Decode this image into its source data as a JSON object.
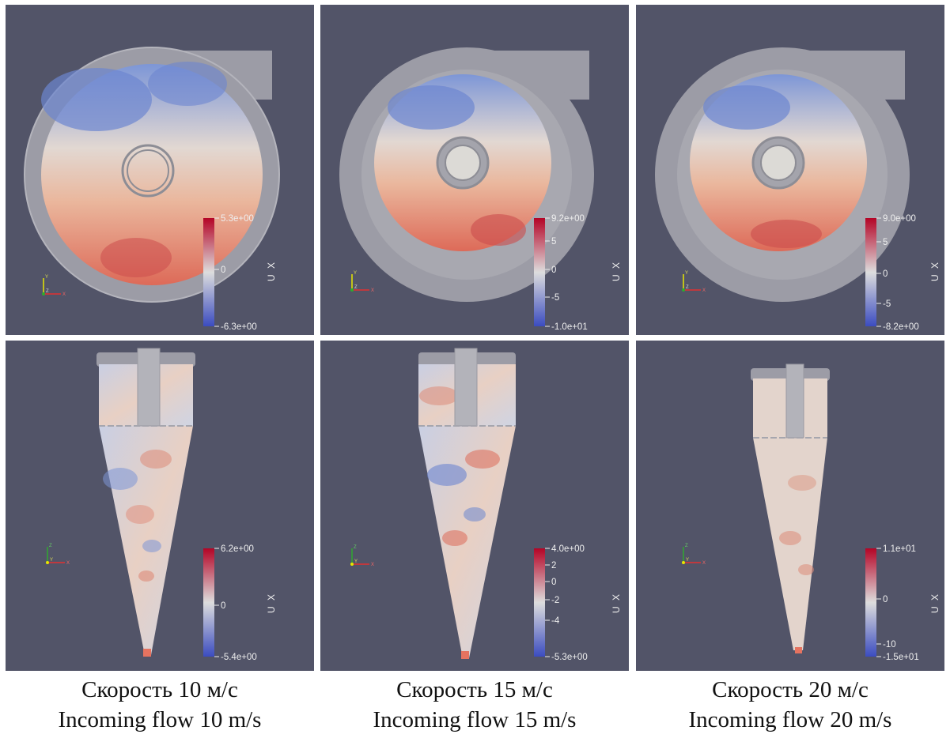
{
  "colors": {
    "background": "#525468",
    "colormap_high": "#b40426",
    "colormap_mid": "#dddddd",
    "colormap_low": "#3b4cc0",
    "housing": "#9c9ca6"
  },
  "panels": [
    {
      "view": "top",
      "colorbar": {
        "title": "U X",
        "ticks": [
          {
            "label": "5.3e+00",
            "value": 5.3
          },
          {
            "label": "0",
            "value": 0
          },
          {
            "label": "-6.3e+00",
            "value": -6.3
          }
        ]
      }
    },
    {
      "view": "top",
      "colorbar": {
        "title": "U X",
        "ticks": [
          {
            "label": "9.2e+00",
            "value": 9.2
          },
          {
            "label": "5",
            "value": 5
          },
          {
            "label": "0",
            "value": 0
          },
          {
            "label": "-5",
            "value": -5
          },
          {
            "label": "-1.0e+01",
            "value": -10
          }
        ]
      }
    },
    {
      "view": "top",
      "colorbar": {
        "title": "U X",
        "ticks": [
          {
            "label": "9.0e+00",
            "value": 9.0
          },
          {
            "label": "5",
            "value": 5
          },
          {
            "label": "0",
            "value": 0
          },
          {
            "label": "-5",
            "value": -5
          },
          {
            "label": "-8.2e+00",
            "value": -8.2
          }
        ]
      }
    },
    {
      "view": "side",
      "colorbar": {
        "title": "U X",
        "ticks": [
          {
            "label": "6.2e+00",
            "value": 6.2
          },
          {
            "label": "0",
            "value": 0
          },
          {
            "label": "-5.4e+00",
            "value": -5.4
          }
        ]
      }
    },
    {
      "view": "side",
      "colorbar": {
        "title": "U X",
        "ticks": [
          {
            "label": "4.0e+00",
            "value": 4.0
          },
          {
            "label": "2",
            "value": 2
          },
          {
            "label": "0",
            "value": 0
          },
          {
            "label": "-2",
            "value": -2
          },
          {
            "label": "-4",
            "value": -4
          },
          {
            "label": "-5.3e+00",
            "value": -5.3
          }
        ]
      }
    },
    {
      "view": "side",
      "colorbar": {
        "title": "U X",
        "ticks": [
          {
            "label": "1.1e+01",
            "value": 11
          },
          {
            "label": "0",
            "value": 0
          },
          {
            "label": "-10",
            "value": -10
          },
          {
            "label": "-1.5e+01",
            "value": -15
          }
        ]
      }
    }
  ],
  "captions": [
    {
      "ru": "Скорость 10 м/с",
      "en": "Incoming flow 10 m/s"
    },
    {
      "ru": "Скорость 15 м/с",
      "en": "Incoming flow 15 m/s"
    },
    {
      "ru": "Скорость 20 м/с",
      "en": "Incoming flow 20 m/s"
    }
  ],
  "axis_labels": {
    "top": [
      "Y",
      "Z",
      "X"
    ],
    "side": [
      "Z",
      "Y",
      "X"
    ]
  }
}
